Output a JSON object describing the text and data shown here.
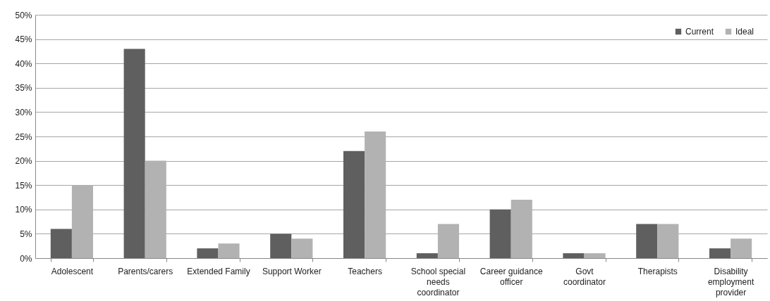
{
  "chart_data": {
    "type": "bar",
    "categories": [
      "Adolescent",
      "Parents/carers",
      "Extended Family",
      "Support Worker",
      "Teachers",
      "School special needs coordinator",
      "Career guidance officer",
      "Govt coordinator",
      "Therapists",
      "Disability employment provider"
    ],
    "series": [
      {
        "name": "Current",
        "color": "#5f5f5f",
        "values": [
          6,
          43,
          2,
          5,
          22,
          1,
          10,
          1,
          7,
          2
        ]
      },
      {
        "name": "Ideal",
        "color": "#b2b2b2",
        "values": [
          15,
          20,
          3,
          4,
          26,
          7,
          12,
          1,
          7,
          4
        ]
      }
    ],
    "ylim": [
      0,
      50
    ],
    "yticks": [
      {
        "value": 0,
        "label": "0%"
      },
      {
        "value": 5,
        "label": "5%"
      },
      {
        "value": 10,
        "label": "10%"
      },
      {
        "value": 15,
        "label": "15%"
      },
      {
        "value": 20,
        "label": "20%"
      },
      {
        "value": 25,
        "label": "25%"
      },
      {
        "value": 30,
        "label": "30%"
      },
      {
        "value": 35,
        "label": "35%"
      },
      {
        "value": 40,
        "label": "40%"
      },
      {
        "value": 45,
        "label": "45%"
      },
      {
        "value": 50,
        "label": "50%"
      }
    ],
    "grid": "y",
    "legend": "top right"
  }
}
